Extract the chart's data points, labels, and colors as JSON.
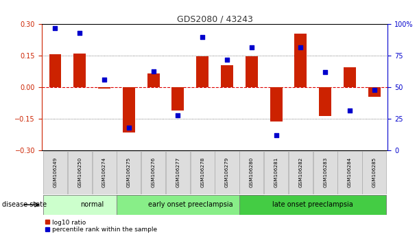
{
  "title": "GDS2080 / 43243",
  "samples": [
    "GSM106249",
    "GSM106250",
    "GSM106274",
    "GSM106275",
    "GSM106276",
    "GSM106277",
    "GSM106278",
    "GSM106279",
    "GSM106280",
    "GSM106281",
    "GSM106282",
    "GSM106283",
    "GSM106284",
    "GSM106285"
  ],
  "log10_ratio": [
    0.158,
    0.162,
    -0.005,
    -0.215,
    0.065,
    -0.11,
    0.148,
    0.105,
    0.148,
    -0.16,
    0.255,
    -0.135,
    0.095,
    -0.045
  ],
  "percentile_rank": [
    97,
    93,
    56,
    18,
    63,
    28,
    90,
    72,
    82,
    12,
    82,
    62,
    32,
    48
  ],
  "groups": [
    {
      "label": "normal",
      "start": 0,
      "end": 3,
      "color": "#ccffcc"
    },
    {
      "label": "early onset preeclampsia",
      "start": 3,
      "end": 8,
      "color": "#88ee88"
    },
    {
      "label": "late onset preeclampsia",
      "start": 8,
      "end": 13,
      "color": "#44cc44"
    }
  ],
  "bar_color": "#cc2200",
  "dot_color": "#0000cc",
  "ylim_left": [
    -0.3,
    0.3
  ],
  "ylim_right": [
    0,
    100
  ],
  "yticks_left": [
    -0.3,
    -0.15,
    0,
    0.15,
    0.3
  ],
  "yticks_right": [
    0,
    25,
    50,
    75,
    100
  ],
  "zero_line_color": "#dd0000",
  "dotted_line_color": "#555555",
  "background_color": "#ffffff",
  "bar_width": 0.5,
  "figsize": [
    6.08,
    3.54
  ],
  "dpi": 100
}
